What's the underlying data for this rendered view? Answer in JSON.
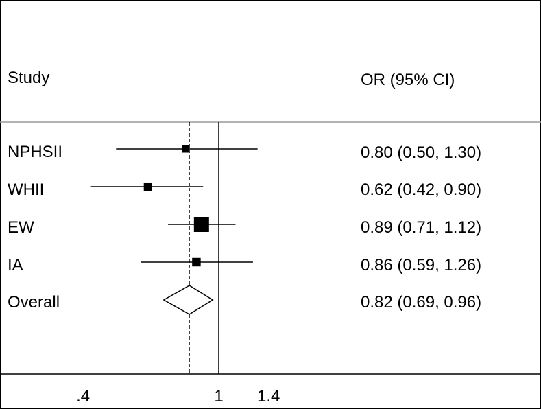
{
  "chart_data": {
    "type": "forest",
    "header": {
      "study_label": "Study",
      "estimate_label": "OR (95% CI)"
    },
    "studies": [
      {
        "name": "NPHSII",
        "or": 0.8,
        "lower": 0.5,
        "upper": 1.3,
        "ci_text": "0.80 (0.50, 1.30)",
        "weight": 0.25
      },
      {
        "name": "WHII",
        "or": 0.62,
        "lower": 0.42,
        "upper": 0.9,
        "ci_text": "0.62 (0.42, 0.90)",
        "weight": 0.3
      },
      {
        "name": "EW",
        "or": 0.89,
        "lower": 0.71,
        "upper": 1.12,
        "ci_text": "0.89 (0.71, 1.12)",
        "weight": 1.0
      },
      {
        "name": "IA",
        "or": 0.86,
        "lower": 0.59,
        "upper": 1.26,
        "ci_text": "0.86 (0.59, 1.26)",
        "weight": 0.32
      }
    ],
    "overall": {
      "name": "Overall",
      "or": 0.82,
      "lower": 0.69,
      "upper": 0.96,
      "ci_text": "0.82 (0.69, 0.96)"
    },
    "x_axis": {
      "scale": "log",
      "ticks": [
        0.4,
        1,
        1.4
      ],
      "tick_labels": [
        ".4",
        "1",
        "1.4"
      ]
    },
    "reference_line": 1,
    "overall_line": 0.82
  }
}
